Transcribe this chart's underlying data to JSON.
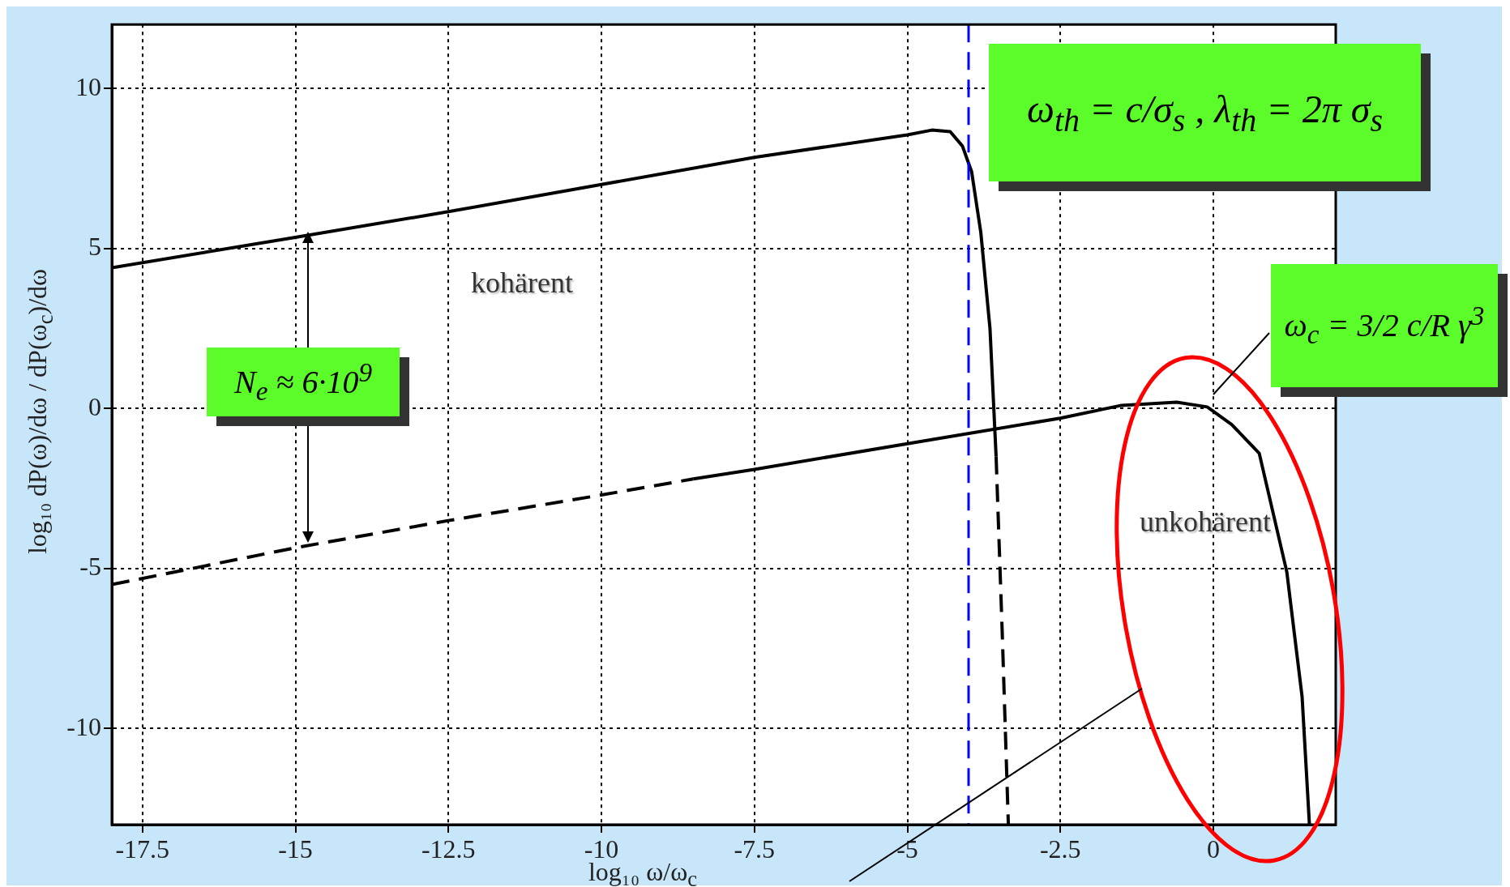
{
  "chart_data": {
    "type": "line",
    "xlabel": "log₁₀ ω/ω$_{c}$",
    "ylabel": "log₁₀ dP(ω)/dω / dP(ω$_{c}$)/dω",
    "xlim": [
      -18,
      2
    ],
    "ylim": [
      -13,
      12
    ],
    "xticks": [
      -17.5,
      -15,
      -12.5,
      -10,
      -7.5,
      -5,
      -2.5,
      0
    ],
    "yticks": [
      -10,
      -5,
      0,
      5,
      10
    ],
    "grid": true,
    "series": [
      {
        "color": "#000000",
        "line_style": "solid",
        "x": [
          -18,
          -15,
          -12.5,
          -10,
          -7.5,
          -5,
          -4.6,
          -4.3,
          -4.1,
          -3.95,
          -3.8,
          -3.65,
          -3.55
        ],
        "values": [
          4.4,
          5.35,
          6.15,
          7.0,
          7.85,
          8.55,
          8.7,
          8.65,
          8.2,
          7.4,
          5.5,
          2.5,
          -1.5
        ]
      },
      {
        "color": "#000000",
        "line_style": "dashed",
        "x": [
          -3.55,
          -3.45,
          -3.35
        ],
        "values": [
          -1.5,
          -7,
          -13
        ]
      },
      {
        "color": "#000000",
        "line_style": "dashed",
        "x": [
          -18,
          -15,
          -12.5,
          -10,
          -8.5
        ],
        "values": [
          -5.5,
          -4.35,
          -3.5,
          -2.7,
          -2.2
        ]
      },
      {
        "color": "#000000",
        "line_style": "solid",
        "x": [
          -8.5,
          -7.5,
          -5,
          -2.5,
          -1.5,
          -0.6,
          -0.1,
          0.3,
          0.75,
          1.2,
          1.45,
          1.57
        ],
        "values": [
          -2.2,
          -1.9,
          -1.1,
          -0.3,
          0.1,
          0.2,
          0.05,
          -0.5,
          -1.4,
          -5.1,
          -9,
          -13
        ]
      }
    ],
    "ref_lines": [
      {
        "axis": "x",
        "value": -4,
        "color": "#0000ff",
        "line_style": "dashed"
      }
    ],
    "annotations": [
      "kohärent",
      "unkohärent",
      "N$_{e}$ ≈ 6·10$^{9}$",
      "ω$_{th}$ = c/σ$_{s}$ ,  λ$_{th}$ = 2π σ$_{s}$",
      "ω$_{c}$ = 3/2 c/R γ$^{3}$"
    ]
  }
}
